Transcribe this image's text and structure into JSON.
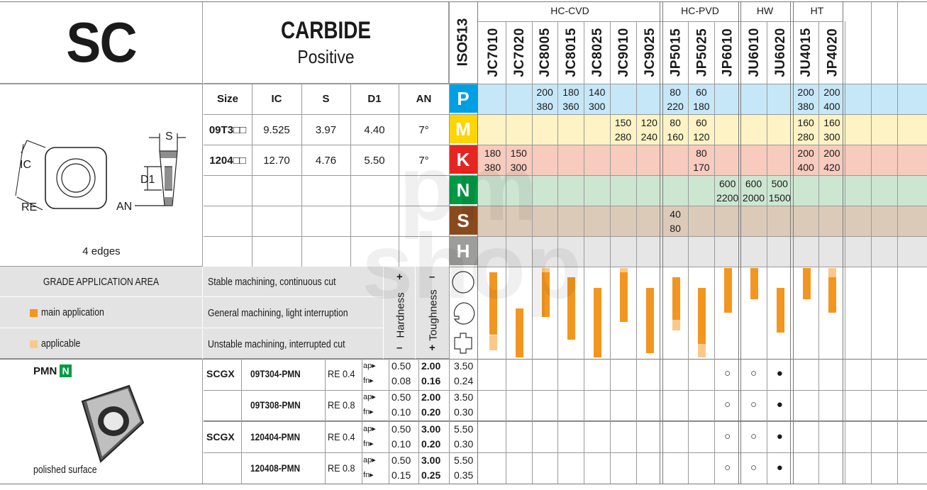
{
  "title": {
    "code": "SC",
    "material": "CARBIDE",
    "type": "Positive"
  },
  "iso_label": "ISO513",
  "groups": [
    {
      "label": "HC-CVD",
      "x": 677,
      "w": 253
    },
    {
      "label": "HC-PVD",
      "x": 933,
      "w": 108
    },
    {
      "label": "HW",
      "x": 1043,
      "w": 71
    },
    {
      "label": "HT",
      "x": 1116,
      "w": 72
    }
  ],
  "grades": [
    "JC7010",
    "JC7020",
    "JC8005",
    "JC8015",
    "JC8025",
    "JC9010",
    "JC9025",
    "JP5015",
    "JP5025",
    "JP6010",
    "JU6010",
    "JU6020",
    "JU4015",
    "JP4020"
  ],
  "dims": {
    "headers": [
      "Size",
      "IC",
      "S",
      "D1",
      "AN"
    ],
    "rows": [
      [
        "09T3□□",
        "9.525",
        "3.97",
        "4.40",
        "7°"
      ],
      [
        "1204□□",
        "12.70",
        "4.76",
        "5.50",
        "7°"
      ]
    ],
    "edges": "4 edges",
    "labels": {
      "ic": "IC",
      "s": "S",
      "d1": "D1",
      "re": "RE",
      "an": "AN"
    }
  },
  "iso_rows": [
    {
      "letter": "P",
      "color": "#009fe3",
      "band": "#c6e7f8"
    },
    {
      "letter": "M",
      "color": "#ffd500",
      "band": "#fdf3c4"
    },
    {
      "letter": "K",
      "color": "#e52521",
      "band": "#f7cbbd"
    },
    {
      "letter": "N",
      "color": "#009a44",
      "band": "#cde6d2"
    },
    {
      "letter": "S",
      "color": "#8b4a1e",
      "band": "#dccab8"
    },
    {
      "letter": "H",
      "color": "#9d9d9c",
      "band": "#e6e6e6"
    }
  ],
  "speeds": {
    "P": [
      [
        "",
        "",
        ""
      ],
      [
        "",
        "",
        ""
      ],
      [
        "200",
        "380"
      ],
      [
        "180",
        "360"
      ],
      [
        "140",
        "300"
      ],
      [
        "",
        ""
      ],
      [
        "",
        ""
      ],
      [
        "80",
        "220"
      ],
      [
        "60",
        "180"
      ],
      [
        "",
        ""
      ],
      [
        "",
        ""
      ],
      [
        "",
        ""
      ],
      [
        "200",
        "380"
      ],
      [
        "200",
        "400"
      ]
    ],
    "M": [
      [
        "",
        ""
      ],
      [
        "",
        ""
      ],
      [
        "",
        ""
      ],
      [
        "",
        ""
      ],
      [
        "",
        ""
      ],
      [
        "150",
        "280"
      ],
      [
        "120",
        "240"
      ],
      [
        "80",
        "160"
      ],
      [
        "60",
        "120"
      ],
      [
        "",
        ""
      ],
      [
        "",
        ""
      ],
      [
        "",
        ""
      ],
      [
        "160",
        "280"
      ],
      [
        "160",
        "300"
      ]
    ],
    "K": [
      [
        "180",
        "380"
      ],
      [
        "150",
        "300"
      ],
      [
        "",
        ""
      ],
      [
        "",
        ""
      ],
      [
        "",
        ""
      ],
      [
        "",
        ""
      ],
      [
        "",
        ""
      ],
      [
        "",
        ""
      ],
      [
        "80",
        "170"
      ],
      [
        "",
        ""
      ],
      [
        "",
        ""
      ],
      [
        "",
        ""
      ],
      [
        "200",
        "400"
      ],
      [
        "200",
        "420"
      ]
    ],
    "N": [
      [
        "",
        ""
      ],
      [
        "",
        ""
      ],
      [
        "",
        ""
      ],
      [
        "",
        ""
      ],
      [
        "",
        ""
      ],
      [
        "",
        ""
      ],
      [
        "",
        ""
      ],
      [
        "",
        ""
      ],
      [
        "",
        ""
      ],
      [
        "600",
        "2200"
      ],
      [
        "600",
        "2000"
      ],
      [
        "500",
        "1500"
      ],
      [
        "",
        ""
      ],
      [
        "",
        ""
      ]
    ],
    "S": [
      [
        "",
        ""
      ],
      [
        "",
        ""
      ],
      [
        "",
        ""
      ],
      [
        "",
        ""
      ],
      [
        "",
        ""
      ],
      [
        "",
        ""
      ],
      [
        "",
        ""
      ],
      [
        "40",
        "80"
      ],
      [
        "",
        ""
      ],
      [
        "",
        ""
      ],
      [
        "",
        ""
      ],
      [
        "",
        ""
      ],
      [
        "",
        ""
      ],
      [
        "",
        ""
      ]
    ]
  },
  "application": {
    "title": "GRADE APPLICATION AREA",
    "legend_main": "main application",
    "legend_applicable": "applicable",
    "main_color": "#f29620",
    "applicable_color": "#f9c98a",
    "cuts": [
      "Stable machining, continuous cut",
      "General machining, light interruption",
      "Unstable machining, interrupted cut"
    ],
    "hardness": "Hardness",
    "toughness": "Toughness",
    "plus": "+",
    "minus": "–",
    "bars": [
      {
        "main": [
          0.05,
          0.75
        ],
        "app": [
          0.75,
          0.92
        ]
      },
      {
        "main": [
          0.45,
          1.0
        ],
        "app": [
          0.45,
          0.45
        ]
      },
      {
        "main": [
          0.05,
          0.55
        ],
        "app": [
          0.0,
          0.05
        ]
      },
      {
        "main": [
          0.1,
          0.8
        ],
        "app": [
          0.8,
          0.8
        ]
      },
      {
        "main": [
          0.22,
          1.0
        ],
        "app": [
          0.22,
          0.22
        ]
      },
      {
        "main": [
          0.05,
          0.6
        ],
        "app": [
          0.0,
          0.05
        ]
      },
      {
        "main": [
          0.22,
          0.95
        ],
        "app": [
          0.95,
          0.95
        ]
      },
      {
        "main": [
          0.1,
          0.58
        ],
        "app": [
          0.58,
          0.7
        ]
      },
      {
        "main": [
          0.22,
          0.85
        ],
        "app": [
          0.85,
          1.0
        ]
      },
      {
        "main": [
          0.0,
          0.5
        ],
        "app": [
          0.5,
          0.5
        ]
      },
      {
        "main": [
          0.0,
          0.35
        ],
        "app": [
          0.35,
          0.35
        ]
      },
      {
        "main": [
          0.22,
          0.72
        ],
        "app": [
          0.72,
          0.72
        ]
      },
      {
        "main": [
          0.0,
          0.35
        ],
        "app": [
          0.35,
          0.35
        ]
      },
      {
        "main": [
          0.1,
          0.5
        ],
        "app": [
          0.0,
          0.1
        ]
      }
    ]
  },
  "products": {
    "chipbreaker": "PMN",
    "material_tag": "N",
    "surface": "polished surface",
    "rows": [
      {
        "series": "SCGX",
        "code": "09T304-PMN",
        "re": "RE 0.4",
        "ap": [
          "0.50",
          "2.00",
          "3.50"
        ],
        "fn": [
          "0.08",
          "0.16",
          "0.24"
        ],
        "marks": [
          "○",
          "○",
          "●"
        ]
      },
      {
        "series": "",
        "code": "09T308-PMN",
        "re": "RE 0.8",
        "ap": [
          "0.50",
          "2.00",
          "3.50"
        ],
        "fn": [
          "0.10",
          "0.20",
          "0.30"
        ],
        "marks": [
          "○",
          "○",
          "●"
        ]
      },
      {
        "series": "SCGX",
        "code": "120404-PMN",
        "re": "RE 0.4",
        "ap": [
          "0.50",
          "3.00",
          "5.50"
        ],
        "fn": [
          "0.10",
          "0.20",
          "0.30"
        ],
        "marks": [
          "○",
          "○",
          "●"
        ]
      },
      {
        "series": "",
        "code": "120408-PMN",
        "re": "RE 0.8",
        "ap": [
          "0.50",
          "3.00",
          "5.50"
        ],
        "fn": [
          "0.15",
          "0.25",
          "0.35"
        ],
        "marks": [
          "○",
          "○",
          "●"
        ]
      }
    ],
    "ap_label": "ap▸",
    "fn_label": "fn▸"
  },
  "watermark": "pm shop"
}
